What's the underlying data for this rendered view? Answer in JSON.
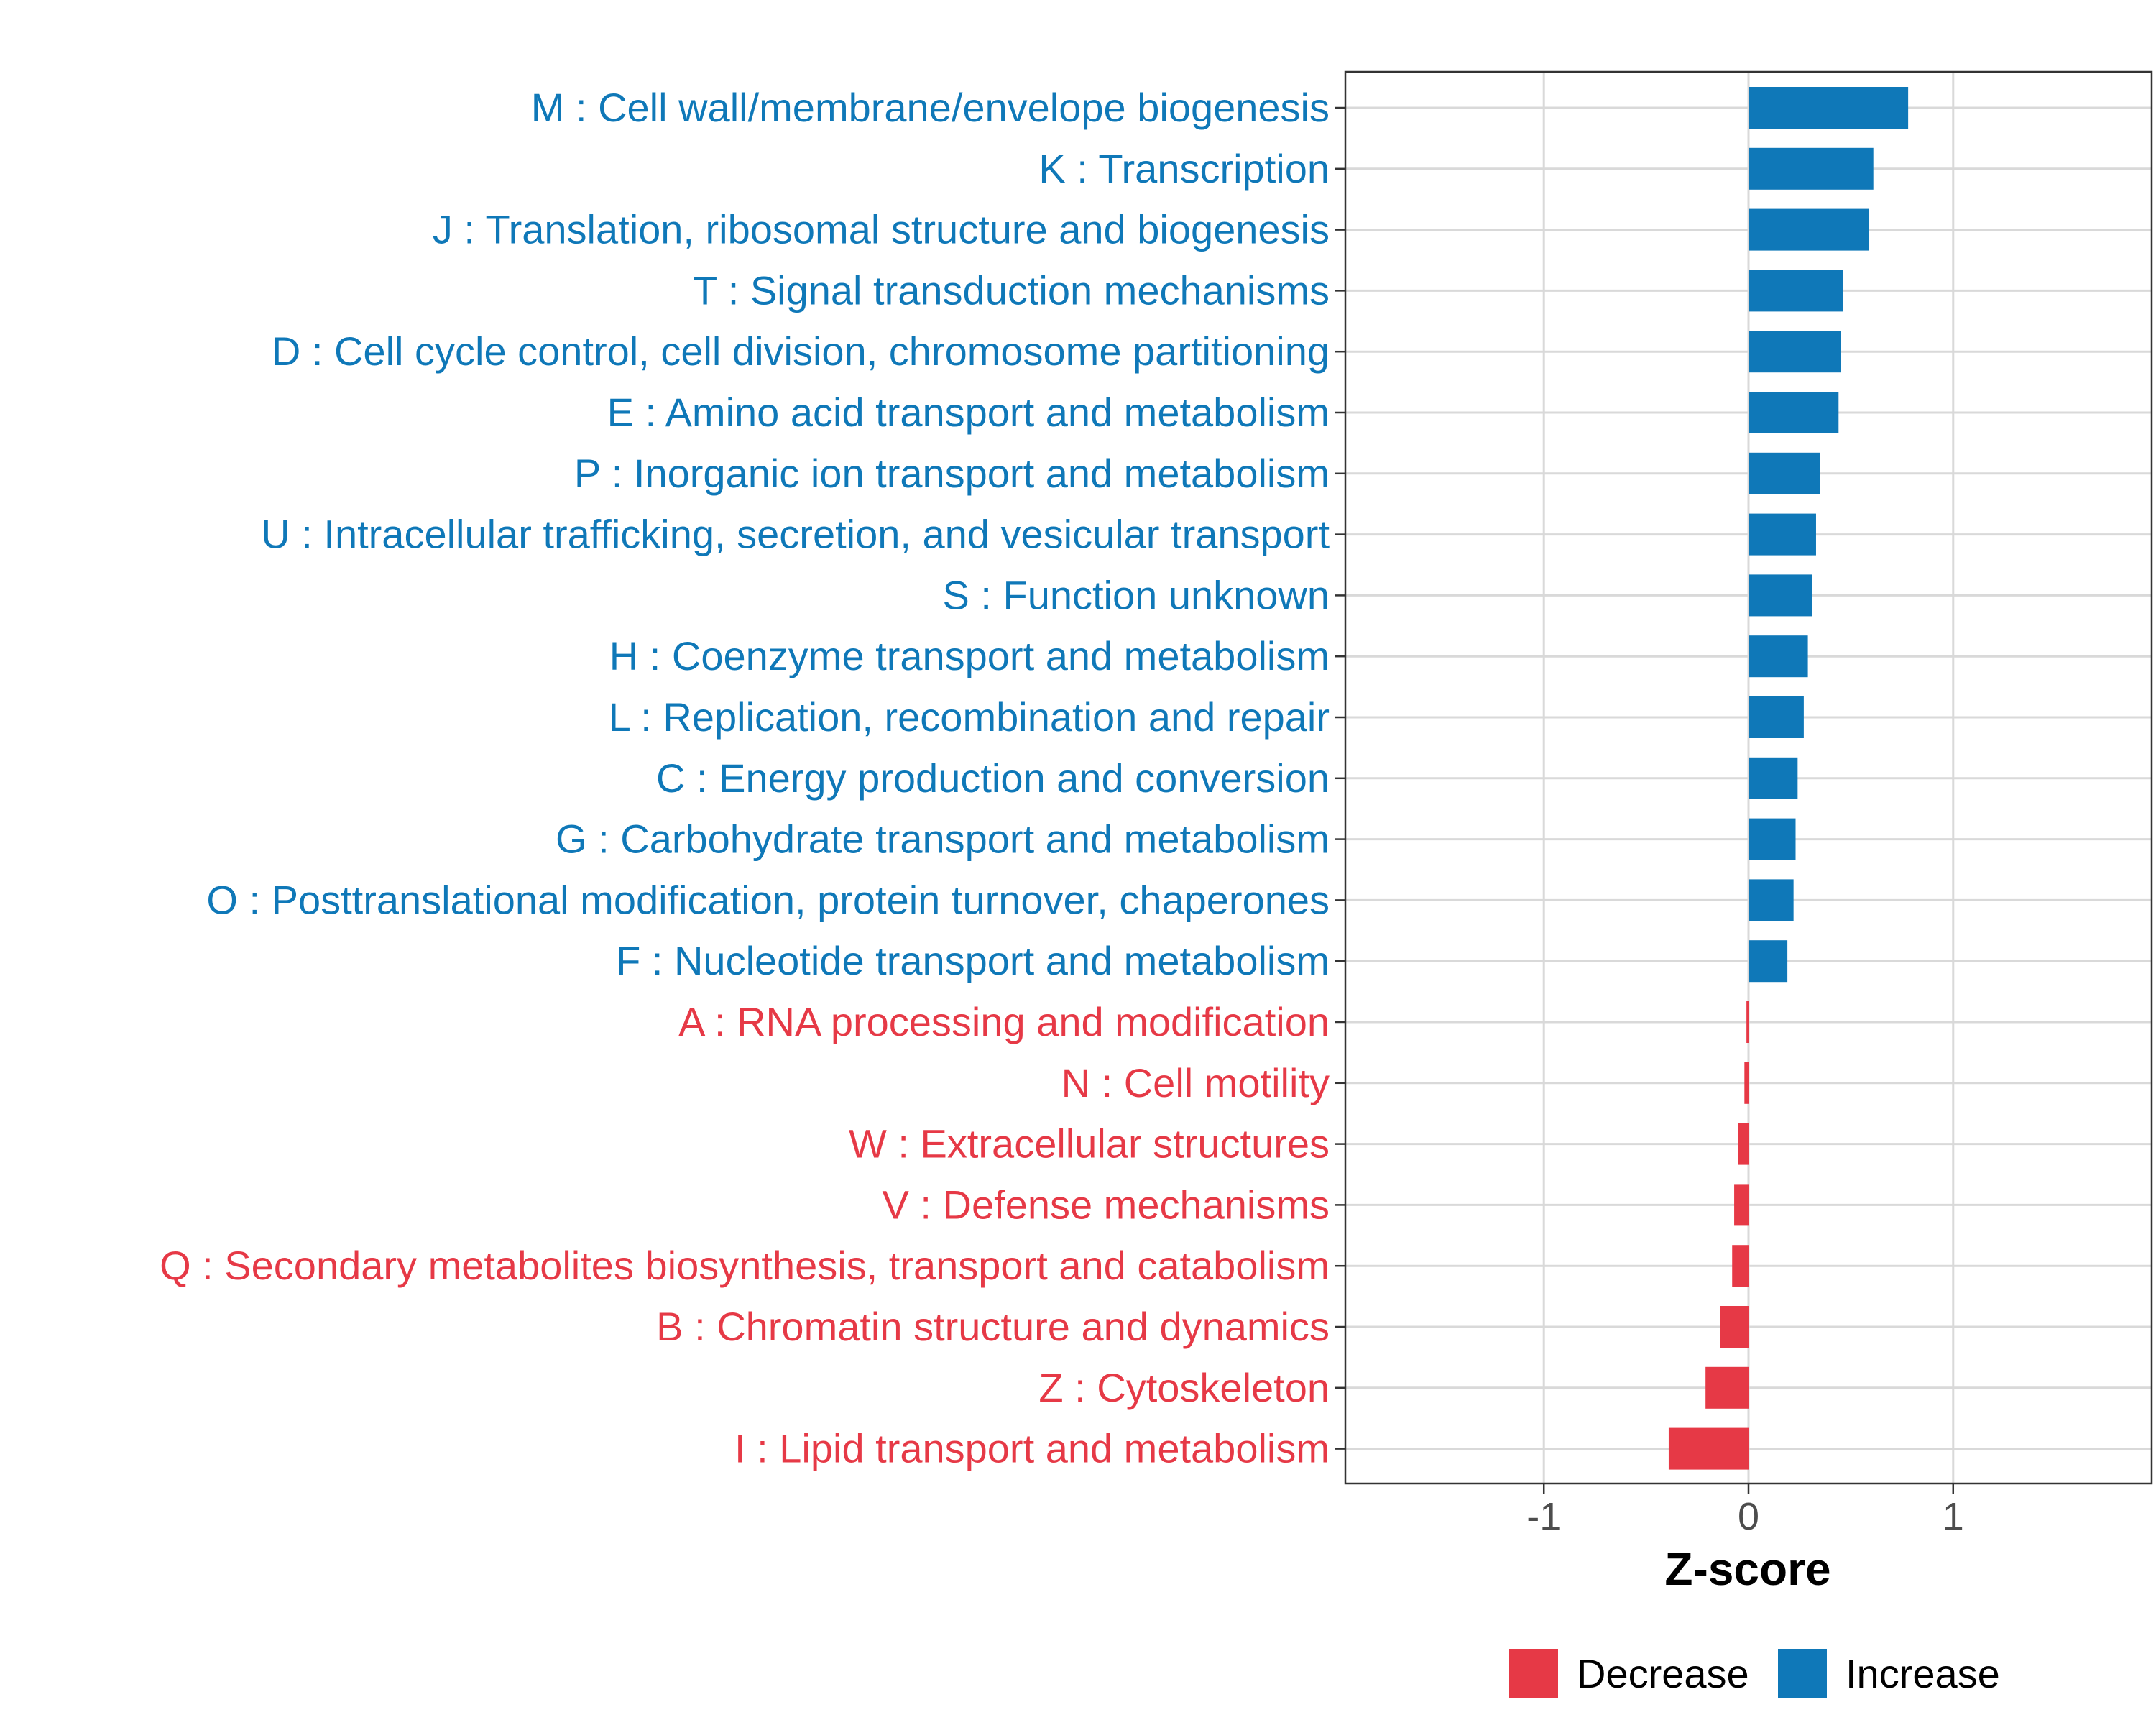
{
  "chart_data": {
    "type": "bar",
    "orientation": "horizontal",
    "xlabel": "Z-score",
    "ylabel": "",
    "xlim": [
      -1.97,
      1.97
    ],
    "xticks": [
      -1,
      0,
      1
    ],
    "xtick_labels": [
      "-1",
      "0",
      "1"
    ],
    "grid": true,
    "legend_position": "bottom",
    "colors": {
      "Increase": "#0f78b8",
      "Decrease": "#e63946"
    },
    "legend": [
      {
        "name": "Decrease",
        "color": "#e63946"
      },
      {
        "name": "Increase",
        "color": "#0f78b8"
      }
    ],
    "categories": [
      "M : Cell wall/membrane/envelope biogenesis",
      "K : Transcription",
      "J : Translation, ribosomal structure and biogenesis",
      "T : Signal transduction mechanisms",
      "D : Cell cycle control, cell division, chromosome partitioning",
      "E : Amino acid transport and metabolism",
      "P : Inorganic ion transport and metabolism",
      "U : Intracellular trafficking, secretion, and vesicular transport",
      "S : Function unknown",
      "H : Coenzyme transport and metabolism",
      "L : Replication, recombination and repair",
      "C : Energy production and conversion",
      "G : Carbohydrate transport and metabolism",
      "O : Posttranslational modification, protein turnover, chaperones",
      "F : Nucleotide transport and metabolism",
      "A : RNA processing and modification",
      "N : Cell motility",
      "W : Extracellular structures",
      "V : Defense mechanisms",
      "Q : Secondary metabolites biosynthesis, transport and catabolism",
      "B : Chromatin structure and dynamics",
      "Z : Cytoskeleton",
      "I : Lipid transport and metabolism"
    ],
    "values": [
      0.78,
      0.61,
      0.59,
      0.46,
      0.45,
      0.44,
      0.35,
      0.33,
      0.31,
      0.29,
      0.27,
      0.24,
      0.23,
      0.22,
      0.19,
      -0.01,
      -0.02,
      -0.05,
      -0.07,
      -0.08,
      -0.14,
      -0.21,
      -0.39
    ],
    "groups": [
      "Increase",
      "Increase",
      "Increase",
      "Increase",
      "Increase",
      "Increase",
      "Increase",
      "Increase",
      "Increase",
      "Increase",
      "Increase",
      "Increase",
      "Increase",
      "Increase",
      "Increase",
      "Decrease",
      "Decrease",
      "Decrease",
      "Decrease",
      "Decrease",
      "Decrease",
      "Decrease",
      "Decrease"
    ]
  }
}
